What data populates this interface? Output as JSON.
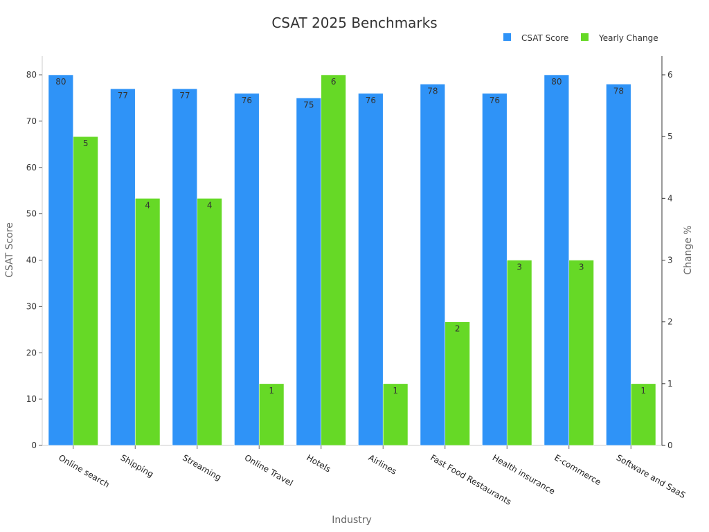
{
  "chart_data": {
    "type": "bar",
    "title": "CSAT 2025 Benchmarks",
    "xlabel": "Industry",
    "ylabel": "CSAT Score",
    "y2label": "Change %",
    "categories": [
      "Online search",
      "Shipping",
      "Streaming",
      "Online Travel",
      "Hotels",
      "Airlines",
      "Fast Food Restaurants",
      "Health insurance",
      "E-commerce",
      "Software and SaaS"
    ],
    "series": [
      {
        "name": "CSAT Score",
        "axis": "left",
        "color": "#2f93f7",
        "values": [
          80,
          77,
          77,
          76,
          75,
          76,
          78,
          76,
          80,
          78
        ]
      },
      {
        "name": "Yearly Change",
        "axis": "right",
        "color": "#66d926",
        "values": [
          5,
          4,
          4,
          1,
          6,
          1,
          2,
          3,
          3,
          1
        ]
      }
    ],
    "ylim": [
      0,
      84
    ],
    "y2lim": [
      0,
      6.3
    ],
    "yticks": [
      0,
      10,
      20,
      30,
      40,
      50,
      60,
      70,
      80
    ],
    "y2ticks": [
      0,
      1,
      2,
      3,
      4,
      5,
      6
    ],
    "grid": false,
    "legend_position": "top-right"
  }
}
